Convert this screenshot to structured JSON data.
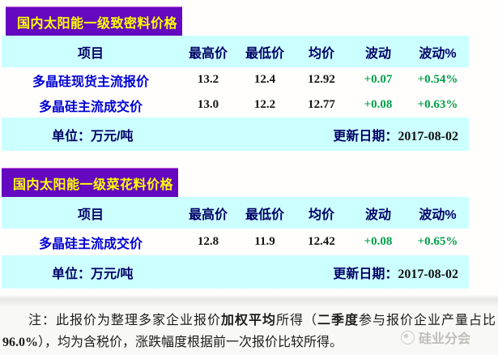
{
  "colors": {
    "purple": "#6409c0",
    "yellow": "#ffff00",
    "cyan": "#ccffff",
    "navy": "#000066",
    "blue": "#0000d4",
    "green": "#00a048"
  },
  "tables": [
    {
      "title": "国内太阳能一级致密料价格",
      "columns": [
        "项目",
        "最高价",
        "最低价",
        "均价",
        "波动",
        "波动%"
      ],
      "rows": [
        {
          "label": "多晶硅现货主流报价",
          "high": "13.2",
          "low": "12.4",
          "avg": "12.92",
          "change": "+0.07",
          "change_pct": "+0.54%"
        },
        {
          "label": "多晶硅主流成交价",
          "high": "13.0",
          "low": "12.2",
          "avg": "12.77",
          "change": "+0.08",
          "change_pct": "+0.63%"
        }
      ],
      "unit_label": "单位：万元/吨",
      "update_label": "更新日期：",
      "update_date": "2017-08-02"
    },
    {
      "title": "国内太阳能一级菜花料价格",
      "columns": [
        "项目",
        "最高价",
        "最低价",
        "均价",
        "波动",
        "波动%"
      ],
      "rows": [
        {
          "label": "多晶硅主流成交价",
          "high": "12.8",
          "low": "11.9",
          "avg": "12.42",
          "change": "+0.08",
          "change_pct": "+0.65%"
        }
      ],
      "unit_label": "单位：万元/吨",
      "update_label": "更新日期：",
      "update_date": "2017-08-02"
    }
  ],
  "footnote": {
    "prefix": "注：此报价为整理多家企业报价",
    "bold1": "加权平均",
    "mid1": "所得（",
    "bold2": "二季度",
    "mid2": "参与报价企业产量占比",
    "bold3": "96.0%",
    "suffix": "），均为含税价，涨跌幅度根据前一次报价比较所得。"
  },
  "watermark": {
    "text": "硅业分会"
  }
}
